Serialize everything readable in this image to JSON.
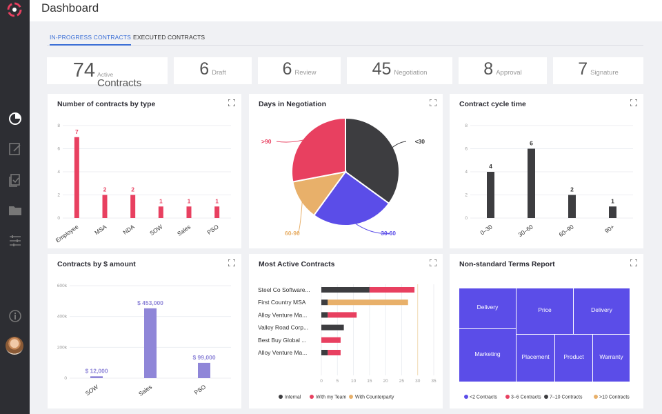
{
  "header": {
    "title": "Dashboard"
  },
  "tabs": [
    {
      "label": "IN-PROGRESS CONTRACTS",
      "active": true
    },
    {
      "label": "EXECUTED CONTRACTS",
      "active": false
    }
  ],
  "stats": {
    "active": {
      "value": "74",
      "small": "Active",
      "big": "Contracts"
    },
    "items": [
      {
        "value": "6",
        "label": "Draft"
      },
      {
        "value": "6",
        "label": "Review"
      },
      {
        "value": "45",
        "label": "Negotiation"
      },
      {
        "value": "8",
        "label": "Approval"
      },
      {
        "value": "7",
        "label": "Signature"
      }
    ]
  },
  "colors": {
    "red": "#e84060",
    "dark": "#3d3d40",
    "purple": "#5b4de8",
    "orange": "#e8b06a",
    "lavender": "#8f86d8",
    "tree": "#5b4de8"
  },
  "cards": {
    "type": {
      "title": "Number of contracts by type"
    },
    "negotiation": {
      "title": "Days in Negotiation"
    },
    "cycle": {
      "title": "Contract cycle time"
    },
    "amount": {
      "title": "Contracts by $ amount"
    },
    "active": {
      "title": "Most Active Contracts"
    },
    "terms": {
      "title": "Non-standard Terms Report"
    }
  },
  "chart_data": [
    {
      "id": "type",
      "type": "bar",
      "title": "Number of contracts by type",
      "categories": [
        "Employee",
        "MSA",
        "NDA",
        "SOW",
        "Sales",
        "PSO"
      ],
      "values": [
        7,
        2,
        2,
        1,
        1,
        1
      ],
      "yticks": [
        0,
        2,
        4,
        6,
        8
      ],
      "ylim": [
        0,
        8
      ]
    },
    {
      "id": "negotiation",
      "type": "pie",
      "title": "Days in Negotiation",
      "slices": [
        {
          "label": "<30",
          "value": 35
        },
        {
          "label": "30-60",
          "value": 25
        },
        {
          "label": "60-90",
          "value": 12
        },
        {
          "label": ">90",
          "value": 28
        }
      ]
    },
    {
      "id": "cycle",
      "type": "bar",
      "title": "Contract cycle time",
      "categories": [
        "0–30",
        "30–60",
        "60–90",
        "90+"
      ],
      "values": [
        4,
        6,
        2,
        1
      ],
      "yticks": [
        0,
        2,
        4,
        6,
        8
      ],
      "ylim": [
        0,
        8
      ]
    },
    {
      "id": "amount",
      "type": "bar",
      "title": "Contracts by $ amount",
      "categories": [
        "SOW",
        "Sales",
        "PSO"
      ],
      "values": [
        12000,
        453000,
        99000
      ],
      "value_labels": [
        "$ 12,000",
        "$ 453,000",
        "$ 99,000"
      ],
      "yticks": [
        "0",
        "200k",
        "400k",
        "600k"
      ],
      "ylim": [
        0,
        600000
      ]
    },
    {
      "id": "active",
      "type": "stacked-bar-horizontal",
      "title": "Most Active Contracts",
      "categories": [
        "Steel Co Software...",
        "First Country MSA",
        "Alloy Venture Ma...",
        "Valley Road Corp...",
        "Best Buy Global ...",
        "Alloy Venture Ma..."
      ],
      "series": [
        {
          "name": "Internal",
          "values": [
            15,
            2,
            2,
            7,
            0,
            2
          ]
        },
        {
          "name": "With my Team",
          "values": [
            14,
            0,
            9,
            0,
            6,
            4
          ]
        },
        {
          "name": "With Counterparty",
          "values": [
            0,
            25,
            0,
            0,
            0,
            0
          ]
        }
      ],
      "xticks": [
        0,
        5,
        10,
        15,
        20,
        25,
        30,
        35
      ],
      "xlim": [
        0,
        35
      ]
    },
    {
      "id": "terms",
      "type": "treemap",
      "title": "Non-standard Terms Report",
      "cells": [
        "Delivery",
        "Price",
        "Delivery",
        "Marketing",
        "Placement",
        "Product",
        "Warranty"
      ],
      "legend": [
        "<2 Contracts",
        "3–6 Contracts",
        "7–10 Contracts",
        ">10 Contracts"
      ]
    }
  ]
}
